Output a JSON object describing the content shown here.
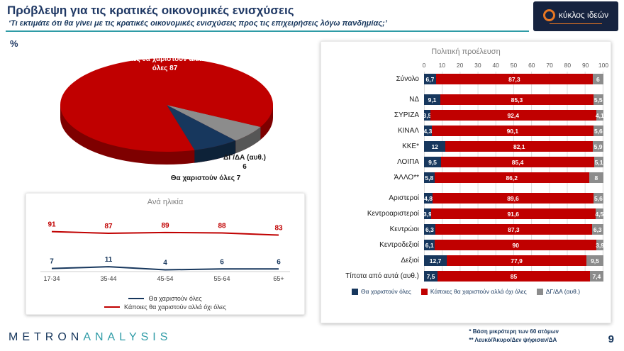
{
  "header": {
    "title": "Πρόβλεψη για τις κρατικές οικονομικές ενισχύσεις",
    "subtitle": "‘Τι εκτιμάτε ότι θα γίνει με τις κρατικές οικονομικές ενισχύσεις προς τις επιχειρήσεις λόγω πανδημίας;’",
    "unit_label": "%",
    "logo_text": "κύκλος ιδεών"
  },
  "colors": {
    "red": "#C00000",
    "blue": "#17375D",
    "gray": "#8C8C8C",
    "teal": "#2E9BA6",
    "navy": "#1F3864",
    "dark_red": "#7E0000",
    "dark_gray": "#565656",
    "dark_blue": "#0D2238"
  },
  "chart_data": [
    {
      "type": "pie",
      "slices": [
        {
          "label": "Κάποιες θα χαριστούν αλλά όχι όλες",
          "value": 87,
          "color_key": "red"
        },
        {
          "label": "ΔΓ/ΔΑ (αυθ.)",
          "value": 6,
          "color_key": "gray"
        },
        {
          "label": "Θα χαριστούν όλες",
          "value": 7,
          "color_key": "blue"
        }
      ]
    },
    {
      "type": "line",
      "title": "Ανά ηλικία",
      "categories": [
        "17-34",
        "35-44",
        "45-54",
        "55-64",
        "65+"
      ],
      "series": [
        {
          "name": "Θα χαριστούν όλες",
          "color_key": "blue",
          "values": [
            7,
            11,
            4,
            6,
            6
          ]
        },
        {
          "name": "Κάποιες θα χαριστούν αλλά όχι όλες",
          "color_key": "red",
          "values": [
            91,
            87,
            89,
            88,
            83
          ]
        }
      ],
      "ylim": [
        0,
        100
      ],
      "legend_position": "bottom"
    },
    {
      "type": "bar",
      "title": "Πολιτική προέλευση",
      "orientation": "horizontal-stacked",
      "axis_ticks": [
        0,
        10,
        20,
        30,
        40,
        50,
        60,
        70,
        80,
        90,
        100
      ],
      "series_keys": [
        "blue",
        "red",
        "gray"
      ],
      "legend": [
        "Θα χαριστούν όλες",
        "Κάποιες θα χαριστούν αλλά όχι όλες",
        "ΔΓ/ΔΑ (αυθ.)"
      ],
      "groups": [
        {
          "rows": [
            {
              "label": "Σύνολο",
              "values": [
                "6,7",
                "87,3",
                "6"
              ]
            }
          ]
        },
        {
          "rows": [
            {
              "label": "ΝΔ",
              "values": [
                "9,1",
                "85,3",
                "5,5"
              ]
            },
            {
              "label": "ΣΥΡΙΖΑ",
              "values": [
                "3,5",
                "92,4",
                "4,1"
              ]
            },
            {
              "label": "ΚΙΝΑΛ",
              "values": [
                "4,3",
                "90,1",
                "5,6"
              ]
            },
            {
              "label": "ΚΚΕ*",
              "values": [
                "12",
                "82,1",
                "5,9"
              ]
            },
            {
              "label": "ΛΟΙΠΑ",
              "values": [
                "9,5",
                "85,4",
                "5,1"
              ]
            },
            {
              "label": "ΆΛΛΟ**",
              "values": [
                "5,8",
                "86,2",
                "8"
              ]
            }
          ]
        },
        {
          "rows": [
            {
              "label": "Αριστεροί",
              "values": [
                "4,8",
                "89,6",
                "5,6"
              ]
            },
            {
              "label": "Κεντροαριστεροί",
              "values": [
                "3,9",
                "91,6",
                "4,5"
              ]
            },
            {
              "label": "Κεντρώοι",
              "values": [
                "6,3",
                "87,3",
                "6,3"
              ]
            },
            {
              "label": "Κεντροδεξιοί",
              "values": [
                "6,1",
                "90",
                "3,9"
              ]
            },
            {
              "label": "Δεξιοί",
              "values": [
                "12,7",
                "77,9",
                "9,5"
              ]
            },
            {
              "label": "Τίποτα από αυτά (αυθ.)",
              "values": [
                "7,5",
                "85",
                "7,4"
              ]
            }
          ]
        }
      ]
    }
  ],
  "footer": {
    "brand_primary": "METRON",
    "brand_secondary": "ANALYSIS",
    "note1": "* Βάση μικρότερη των 60 ατόμων",
    "note2": "** Λευκό/Άκυρο/Δεν ψήφισαν/ΔΑ",
    "page": "9"
  }
}
